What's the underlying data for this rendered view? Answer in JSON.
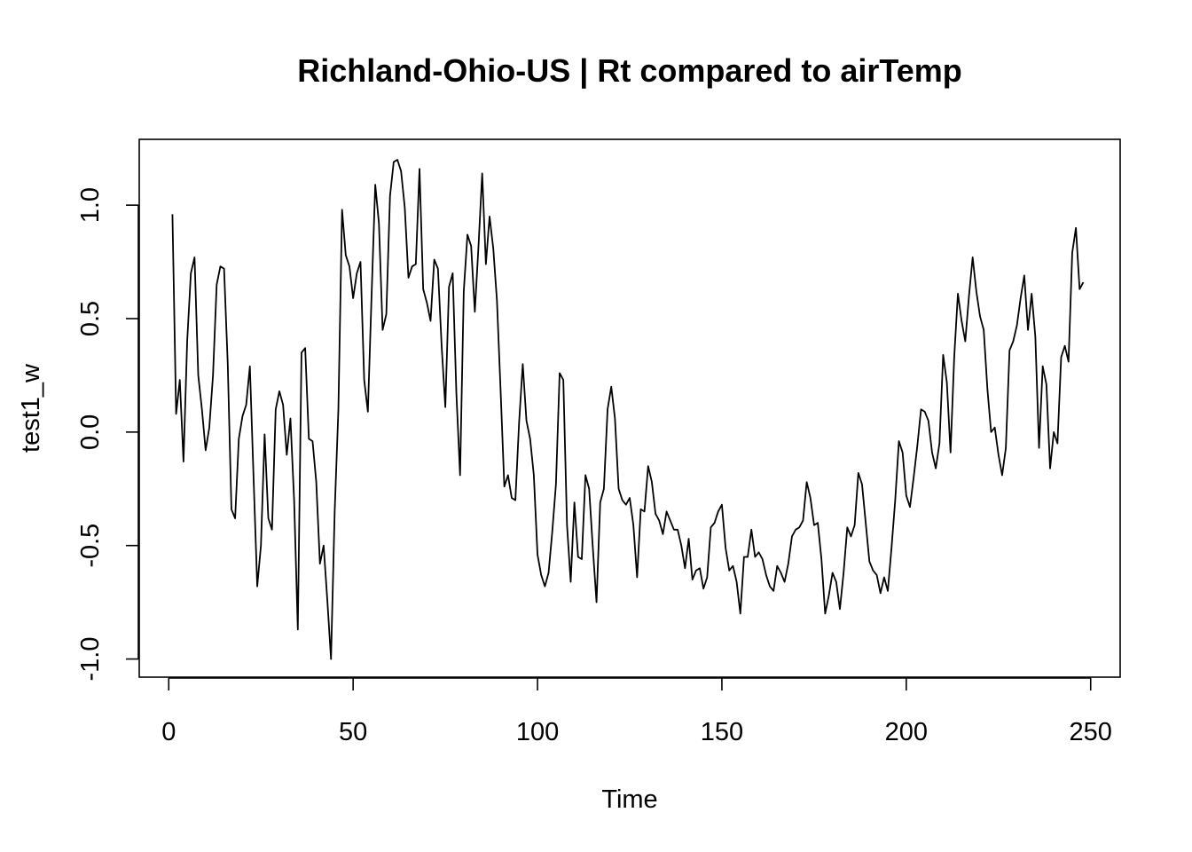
{
  "chart_data": {
    "type": "line",
    "title": "Richland-Ohio-US | Rt compared to airTemp",
    "xlabel": "Time",
    "ylabel": "test1_w",
    "xlim": [
      -8,
      258
    ],
    "ylim": [
      -1.08,
      1.29
    ],
    "x_ticks": [
      0,
      50,
      100,
      150,
      200,
      250
    ],
    "x_tick_labels": [
      "0",
      "50",
      "100",
      "150",
      "200",
      "250"
    ],
    "y_ticks": [
      -1.0,
      -0.5,
      0.0,
      0.5,
      1.0
    ],
    "y_tick_labels": [
      "-1.0",
      "-0.5",
      "0.0",
      "0.5",
      "1.0"
    ],
    "grid": false,
    "legend": "none",
    "series": [
      {
        "color": "#000000",
        "x": [
          1,
          2,
          3,
          4,
          5,
          6,
          7,
          8,
          9,
          10,
          11,
          12,
          13,
          14,
          15,
          16,
          17,
          18,
          19,
          20,
          21,
          22,
          23,
          24,
          25,
          26,
          27,
          28,
          29,
          30,
          31,
          32,
          33,
          34,
          35,
          36,
          37,
          38,
          39,
          40,
          41,
          42,
          43,
          44,
          45,
          46,
          47,
          48,
          49,
          50,
          51,
          52,
          53,
          54,
          55,
          56,
          57,
          58,
          59,
          60,
          61,
          62,
          63,
          64,
          65,
          66,
          67,
          68,
          69,
          70,
          71,
          72,
          73,
          74,
          75,
          76,
          77,
          78,
          79,
          80,
          81,
          82,
          83,
          84,
          85,
          86,
          87,
          88,
          89,
          90,
          91,
          92,
          93,
          94,
          95,
          96,
          97,
          98,
          99,
          100,
          101,
          102,
          103,
          104,
          105,
          106,
          107,
          108,
          109,
          110,
          111,
          112,
          113,
          114,
          115,
          116,
          117,
          118,
          119,
          120,
          121,
          122,
          123,
          124,
          125,
          126,
          127,
          128,
          129,
          130,
          131,
          132,
          133,
          134,
          135,
          136,
          137,
          138,
          139,
          140,
          141,
          142,
          143,
          144,
          145,
          146,
          147,
          148,
          149,
          150,
          151,
          152,
          153,
          154,
          155,
          156,
          157,
          158,
          159,
          160,
          161,
          162,
          163,
          164,
          165,
          166,
          167,
          168,
          169,
          170,
          171,
          172,
          173,
          174,
          175,
          176,
          177,
          178,
          179,
          180,
          181,
          182,
          183,
          184,
          185,
          186,
          187,
          188,
          189,
          190,
          191,
          192,
          193,
          194,
          195,
          196,
          197,
          198,
          199,
          200,
          201,
          202,
          203,
          204,
          205,
          206,
          207,
          208,
          209,
          210,
          211,
          212,
          213,
          214,
          215,
          216,
          217,
          218,
          219,
          220,
          221,
          222,
          223,
          224,
          225,
          226,
          227,
          228,
          229,
          230,
          231,
          232,
          233,
          234,
          235,
          236,
          237,
          238,
          239,
          240,
          241,
          242,
          243,
          244,
          245,
          246,
          247,
          248
        ],
        "y": [
          0.96,
          0.08,
          0.23,
          -0.13,
          0.4,
          0.7,
          0.77,
          0.25,
          0.1,
          -0.08,
          0.02,
          0.25,
          0.65,
          0.73,
          0.72,
          0.3,
          -0.34,
          -0.38,
          -0.03,
          0.07,
          0.12,
          0.29,
          -0.2,
          -0.68,
          -0.5,
          -0.01,
          -0.38,
          -0.43,
          0.1,
          0.18,
          0.12,
          -0.1,
          0.06,
          -0.3,
          -0.87,
          0.35,
          0.37,
          -0.03,
          -0.04,
          -0.22,
          -0.58,
          -0.5,
          -0.74,
          -1.0,
          -0.35,
          0.1,
          0.98,
          0.78,
          0.73,
          0.59,
          0.7,
          0.75,
          0.23,
          0.09,
          0.6,
          1.09,
          0.92,
          0.45,
          0.52,
          1.04,
          1.19,
          1.2,
          1.15,
          0.99,
          0.68,
          0.73,
          0.74,
          1.16,
          0.63,
          0.57,
          0.49,
          0.76,
          0.72,
          0.38,
          0.11,
          0.64,
          0.7,
          0.17,
          -0.19,
          0.62,
          0.87,
          0.82,
          0.53,
          0.82,
          1.14,
          0.74,
          0.95,
          0.81,
          0.58,
          0.18,
          -0.24,
          -0.19,
          -0.29,
          -0.3,
          0.04,
          0.3,
          0.05,
          -0.03,
          -0.19,
          -0.54,
          -0.63,
          -0.68,
          -0.62,
          -0.44,
          -0.23,
          0.26,
          0.23,
          -0.41,
          -0.66,
          -0.31,
          -0.55,
          -0.56,
          -0.19,
          -0.25,
          -0.51,
          -0.75,
          -0.31,
          -0.25,
          0.1,
          0.2,
          0.06,
          -0.25,
          -0.3,
          -0.32,
          -0.29,
          -0.41,
          -0.64,
          -0.34,
          -0.35,
          -0.15,
          -0.22,
          -0.36,
          -0.39,
          -0.45,
          -0.35,
          -0.39,
          -0.43,
          -0.43,
          -0.5,
          -0.6,
          -0.47,
          -0.65,
          -0.61,
          -0.6,
          -0.69,
          -0.64,
          -0.42,
          -0.4,
          -0.35,
          -0.32,
          -0.51,
          -0.61,
          -0.59,
          -0.66,
          -0.8,
          -0.55,
          -0.55,
          -0.43,
          -0.55,
          -0.53,
          -0.56,
          -0.63,
          -0.68,
          -0.7,
          -0.59,
          -0.62,
          -0.66,
          -0.58,
          -0.46,
          -0.43,
          -0.42,
          -0.39,
          -0.22,
          -0.29,
          -0.41,
          -0.4,
          -0.56,
          -0.8,
          -0.72,
          -0.62,
          -0.66,
          -0.78,
          -0.62,
          -0.42,
          -0.46,
          -0.41,
          -0.18,
          -0.23,
          -0.4,
          -0.57,
          -0.61,
          -0.63,
          -0.71,
          -0.64,
          -0.7,
          -0.51,
          -0.3,
          -0.04,
          -0.09,
          -0.28,
          -0.33,
          -0.2,
          -0.06,
          0.1,
          0.09,
          0.05,
          -0.09,
          -0.16,
          -0.05,
          0.34,
          0.22,
          -0.09,
          0.33,
          0.61,
          0.49,
          0.4,
          0.6,
          0.77,
          0.62,
          0.51,
          0.45,
          0.19,
          0.0,
          0.02,
          -0.1,
          -0.19,
          -0.07,
          0.36,
          0.4,
          0.47,
          0.59,
          0.69,
          0.45,
          0.61,
          0.42,
          -0.07,
          0.29,
          0.21,
          -0.16,
          0.0,
          -0.05,
          0.33,
          0.38,
          0.31,
          0.79,
          0.9,
          0.63,
          0.66
        ]
      }
    ]
  }
}
